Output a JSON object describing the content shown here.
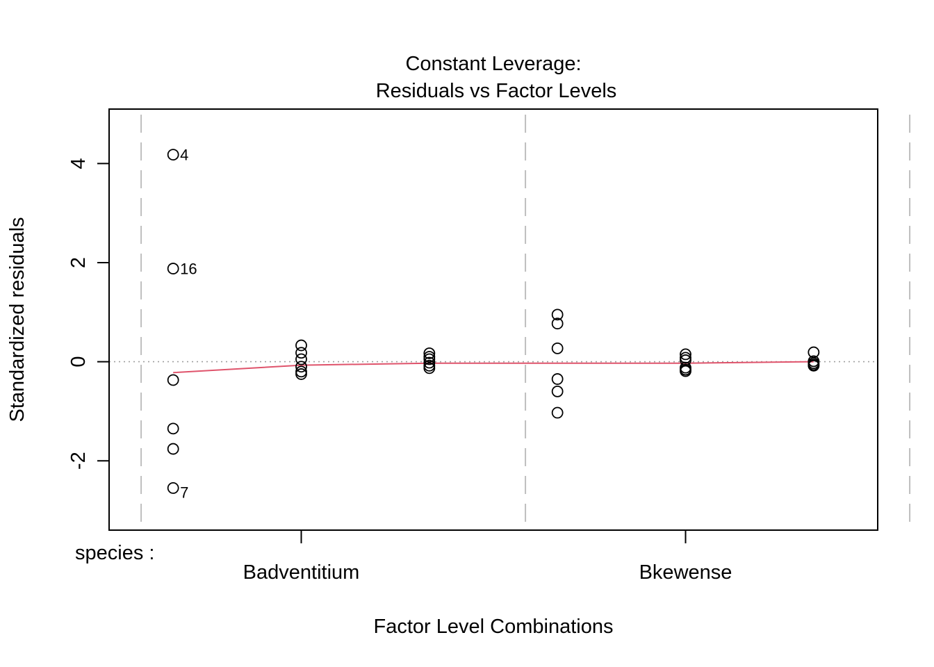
{
  "chart_data": {
    "type": "scatter",
    "title": "Constant Leverage:",
    "subtitle": "Residuals vs Factor Levels",
    "xlabel": "Factor Level Combinations",
    "ylabel": "Standardized residuals",
    "factor_label": "species :",
    "factor_levels": [
      "Badventitium",
      "Bkewense"
    ],
    "ylim": [
      -3.4,
      5.1
    ],
    "xlim": [
      0.5,
      6.5
    ],
    "y_ticks": [
      -2,
      0,
      2,
      4
    ],
    "y_tick_labels": [
      "-2",
      "0",
      "2",
      "4"
    ],
    "reference_line_y": 0,
    "group_separators_x": [
      0.75,
      3.75,
      6.75
    ],
    "series": [
      {
        "x": 1,
        "values": [
          4.18,
          1.88,
          -0.37,
          -1.35,
          -1.76,
          -2.55
        ]
      },
      {
        "x": 2,
        "values": [
          0.33,
          0.18,
          0.05,
          -0.1,
          -0.2,
          -0.25
        ]
      },
      {
        "x": 3,
        "values": [
          0.17,
          0.1,
          0.05,
          -0.02,
          -0.08,
          -0.13
        ]
      },
      {
        "x": 4,
        "values": [
          0.95,
          0.77,
          0.27,
          -0.35,
          -0.6,
          -1.03
        ]
      },
      {
        "x": 5,
        "values": [
          0.15,
          0.08,
          0.03,
          -0.12,
          -0.16,
          -0.19
        ]
      },
      {
        "x": 6,
        "values": [
          0.19,
          0.01,
          -0.03,
          -0.06,
          -0.08
        ]
      }
    ],
    "smooth_line": {
      "x": [
        1,
        2,
        3,
        4,
        5,
        6
      ],
      "y": [
        -0.22,
        -0.07,
        -0.03,
        -0.03,
        -0.03,
        0.0
      ]
    },
    "point_labels": [
      {
        "x": 1,
        "y": 4.18,
        "text": "4"
      },
      {
        "x": 1,
        "y": 1.88,
        "text": "16"
      },
      {
        "x": 1,
        "y": -2.55,
        "text": "7"
      }
    ],
    "colors": {
      "points": "#000000",
      "smooth": "#DF536B",
      "reference": "#9E9E9E",
      "separators": "#BEBEBE"
    }
  }
}
